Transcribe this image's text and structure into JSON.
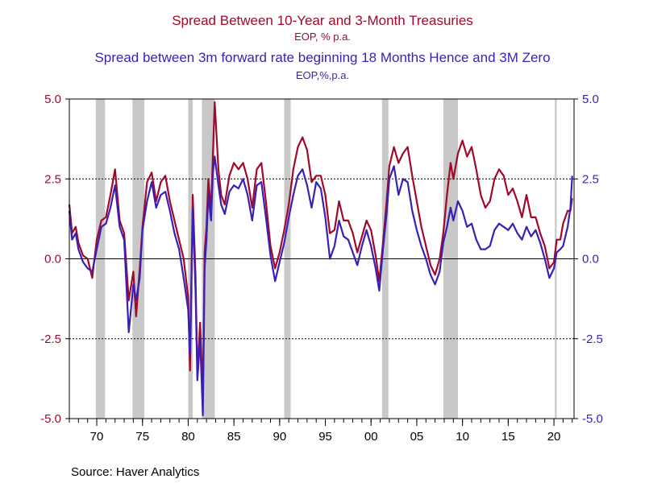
{
  "titles": {
    "series1_title": "Spread Between 10-Year and 3-Month Treasuries",
    "series1_subtitle": "EOP, % p.a.",
    "series2_title": "Spread between 3m forward rate beginning 18 Months Hence and 3M Zero",
    "series2_subtitle": "EOP,%,p.a."
  },
  "source": "Source:  Haver Analytics",
  "colors": {
    "series1": "#a0092a",
    "series2": "#3b1fb5",
    "recession": "#c8c8c8"
  },
  "chart_data": {
    "type": "line",
    "title": "Spread Between 10-Year and 3-Month Treasuries",
    "xlim": [
      1967.0,
      2022.2
    ],
    "ylim": [
      -5.0,
      5.0
    ],
    "y_ticks": [
      "5.0",
      "2.5",
      "0.0",
      "-2.5",
      "-5.0"
    ],
    "y_tick_values": [
      5.0,
      2.5,
      0.0,
      -2.5,
      -5.0
    ],
    "x_ticks": [
      "70",
      "75",
      "80",
      "85",
      "90",
      "95",
      "00",
      "05",
      "10",
      "15",
      "20"
    ],
    "x_tick_values": [
      1970,
      1975,
      1980,
      1985,
      1990,
      1995,
      2000,
      2005,
      2010,
      2015,
      2020
    ],
    "recessions": [
      [
        1969.9,
        1970.9
      ],
      [
        1973.9,
        1975.2
      ],
      [
        1980.0,
        1980.5
      ],
      [
        1981.5,
        1982.9
      ],
      [
        1990.5,
        1991.2
      ],
      [
        2001.2,
        2001.9
      ],
      [
        2007.9,
        2009.5
      ],
      [
        2020.1,
        2020.3
      ]
    ],
    "dashed_gridlines": [
      2.5,
      -2.5
    ],
    "solid_gridlines": [
      0.0
    ],
    "series": [
      {
        "name": "Spread Between 10-Year and 3-Month Treasuries",
        "color": "#a0092a",
        "points": [
          [
            1967.0,
            1.7
          ],
          [
            1967.3,
            0.8
          ],
          [
            1967.7,
            1.0
          ],
          [
            1968.0,
            0.5
          ],
          [
            1968.5,
            0.1
          ],
          [
            1969.0,
            0.0
          ],
          [
            1969.5,
            -0.6
          ],
          [
            1970.0,
            0.6
          ],
          [
            1970.5,
            1.2
          ],
          [
            1971.0,
            1.3
          ],
          [
            1971.5,
            2.0
          ],
          [
            1972.0,
            2.8
          ],
          [
            1972.5,
            1.2
          ],
          [
            1973.0,
            0.8
          ],
          [
            1973.5,
            -1.3
          ],
          [
            1974.0,
            -0.4
          ],
          [
            1974.3,
            -1.8
          ],
          [
            1974.7,
            -0.3
          ],
          [
            1975.0,
            1.0
          ],
          [
            1975.5,
            2.4
          ],
          [
            1976.0,
            2.7
          ],
          [
            1976.5,
            1.8
          ],
          [
            1977.0,
            2.4
          ],
          [
            1977.5,
            2.6
          ],
          [
            1978.0,
            1.8
          ],
          [
            1978.5,
            1.2
          ],
          [
            1979.0,
            0.6
          ],
          [
            1979.5,
            0.0
          ],
          [
            1980.0,
            -1.2
          ],
          [
            1980.2,
            -3.5
          ],
          [
            1980.5,
            2.0
          ],
          [
            1980.8,
            -0.5
          ],
          [
            1981.0,
            -3.6
          ],
          [
            1981.3,
            -2.0
          ],
          [
            1981.6,
            -4.3
          ],
          [
            1981.8,
            0.2
          ],
          [
            1982.0,
            1.0
          ],
          [
            1982.2,
            2.5
          ],
          [
            1982.5,
            1.5
          ],
          [
            1982.7,
            3.2
          ],
          [
            1982.9,
            4.9
          ],
          [
            1983.3,
            2.8
          ],
          [
            1983.6,
            2.0
          ],
          [
            1984.0,
            1.7
          ],
          [
            1984.5,
            2.6
          ],
          [
            1985.0,
            3.0
          ],
          [
            1985.5,
            2.8
          ],
          [
            1986.0,
            3.0
          ],
          [
            1986.5,
            2.5
          ],
          [
            1987.0,
            1.6
          ],
          [
            1987.5,
            2.8
          ],
          [
            1988.0,
            3.0
          ],
          [
            1988.5,
            1.8
          ],
          [
            1989.0,
            0.4
          ],
          [
            1989.5,
            -0.3
          ],
          [
            1990.0,
            0.2
          ],
          [
            1990.5,
            0.9
          ],
          [
            1991.0,
            1.7
          ],
          [
            1991.5,
            2.8
          ],
          [
            1992.0,
            3.5
          ],
          [
            1992.5,
            3.8
          ],
          [
            1993.0,
            3.4
          ],
          [
            1993.5,
            2.4
          ],
          [
            1994.0,
            2.6
          ],
          [
            1994.5,
            2.6
          ],
          [
            1995.0,
            2.0
          ],
          [
            1995.5,
            0.8
          ],
          [
            1996.0,
            0.9
          ],
          [
            1996.5,
            1.8
          ],
          [
            1997.0,
            1.2
          ],
          [
            1997.5,
            1.2
          ],
          [
            1998.0,
            0.8
          ],
          [
            1998.5,
            0.2
          ],
          [
            1999.0,
            0.7
          ],
          [
            1999.5,
            1.2
          ],
          [
            2000.0,
            0.9
          ],
          [
            2000.5,
            0.1
          ],
          [
            2000.9,
            -0.7
          ],
          [
            2001.3,
            0.5
          ],
          [
            2001.7,
            1.8
          ],
          [
            2002.0,
            2.9
          ],
          [
            2002.5,
            3.5
          ],
          [
            2003.0,
            3.0
          ],
          [
            2003.5,
            3.3
          ],
          [
            2004.0,
            3.5
          ],
          [
            2004.5,
            2.6
          ],
          [
            2005.0,
            1.8
          ],
          [
            2005.5,
            1.0
          ],
          [
            2006.0,
            0.4
          ],
          [
            2006.5,
            -0.2
          ],
          [
            2007.0,
            -0.5
          ],
          [
            2007.5,
            0.0
          ],
          [
            2007.9,
            0.8
          ],
          [
            2008.3,
            2.0
          ],
          [
            2008.7,
            3.0
          ],
          [
            2009.0,
            2.5
          ],
          [
            2009.5,
            3.3
          ],
          [
            2010.0,
            3.7
          ],
          [
            2010.5,
            3.2
          ],
          [
            2011.0,
            3.5
          ],
          [
            2011.5,
            2.8
          ],
          [
            2012.0,
            2.0
          ],
          [
            2012.5,
            1.6
          ],
          [
            2013.0,
            1.8
          ],
          [
            2013.5,
            2.5
          ],
          [
            2014.0,
            2.8
          ],
          [
            2014.5,
            2.6
          ],
          [
            2015.0,
            2.0
          ],
          [
            2015.5,
            2.2
          ],
          [
            2016.0,
            1.8
          ],
          [
            2016.5,
            1.3
          ],
          [
            2017.0,
            2.0
          ],
          [
            2017.5,
            1.3
          ],
          [
            2018.0,
            1.3
          ],
          [
            2018.5,
            0.8
          ],
          [
            2019.0,
            0.4
          ],
          [
            2019.5,
            -0.3
          ],
          [
            2020.0,
            -0.1
          ],
          [
            2020.3,
            0.6
          ],
          [
            2020.7,
            0.6
          ],
          [
            2021.0,
            1.1
          ],
          [
            2021.5,
            1.5
          ],
          [
            2021.8,
            1.5
          ],
          [
            2022.0,
            1.9
          ]
        ]
      },
      {
        "name": "Spread between 3m forward rate beginning 18 Months Hence and 3M Zero",
        "color": "#3b1fb5",
        "points": [
          [
            1967.0,
            1.5
          ],
          [
            1967.3,
            0.6
          ],
          [
            1967.7,
            0.8
          ],
          [
            1968.0,
            0.3
          ],
          [
            1968.5,
            -0.1
          ],
          [
            1969.0,
            -0.3
          ],
          [
            1969.5,
            -0.4
          ],
          [
            1970.0,
            0.3
          ],
          [
            1970.5,
            1.0
          ],
          [
            1971.0,
            1.1
          ],
          [
            1971.5,
            1.6
          ],
          [
            1972.0,
            2.3
          ],
          [
            1972.5,
            1.0
          ],
          [
            1973.0,
            0.6
          ],
          [
            1973.5,
            -2.3
          ],
          [
            1974.0,
            -0.8
          ],
          [
            1974.3,
            -1.3
          ],
          [
            1974.7,
            -0.6
          ],
          [
            1975.0,
            0.9
          ],
          [
            1975.5,
            1.8
          ],
          [
            1976.0,
            2.4
          ],
          [
            1976.5,
            1.6
          ],
          [
            1977.0,
            2.0
          ],
          [
            1977.5,
            2.1
          ],
          [
            1978.0,
            1.5
          ],
          [
            1978.5,
            0.8
          ],
          [
            1979.0,
            0.3
          ],
          [
            1979.5,
            -0.6
          ],
          [
            1980.0,
            -1.6
          ],
          [
            1980.2,
            -3.0
          ],
          [
            1980.5,
            1.6
          ],
          [
            1980.8,
            -1.0
          ],
          [
            1981.0,
            -3.8
          ],
          [
            1981.3,
            -2.5
          ],
          [
            1981.6,
            -4.9
          ],
          [
            1981.8,
            -0.3
          ],
          [
            1982.0,
            0.6
          ],
          [
            1982.2,
            2.0
          ],
          [
            1982.5,
            1.2
          ],
          [
            1982.7,
            2.7
          ],
          [
            1982.9,
            3.2
          ],
          [
            1983.3,
            2.3
          ],
          [
            1983.6,
            1.7
          ],
          [
            1984.0,
            1.4
          ],
          [
            1984.5,
            2.1
          ],
          [
            1985.0,
            2.3
          ],
          [
            1985.5,
            2.2
          ],
          [
            1986.0,
            2.5
          ],
          [
            1986.5,
            2.0
          ],
          [
            1987.0,
            1.2
          ],
          [
            1987.5,
            2.3
          ],
          [
            1988.0,
            2.4
          ],
          [
            1988.5,
            1.3
          ],
          [
            1989.0,
            0.1
          ],
          [
            1989.5,
            -0.7
          ],
          [
            1990.0,
            -0.1
          ],
          [
            1990.5,
            0.5
          ],
          [
            1991.0,
            1.3
          ],
          [
            1991.5,
            2.0
          ],
          [
            1992.0,
            2.6
          ],
          [
            1992.5,
            2.8
          ],
          [
            1993.0,
            2.3
          ],
          [
            1993.5,
            1.6
          ],
          [
            1994.0,
            2.4
          ],
          [
            1994.5,
            2.2
          ],
          [
            1995.0,
            1.3
          ],
          [
            1995.5,
            0.0
          ],
          [
            1996.0,
            0.4
          ],
          [
            1996.5,
            1.2
          ],
          [
            1997.0,
            0.7
          ],
          [
            1997.5,
            0.6
          ],
          [
            1998.0,
            0.2
          ],
          [
            1998.5,
            -0.2
          ],
          [
            1999.0,
            0.4
          ],
          [
            1999.5,
            0.9
          ],
          [
            2000.0,
            0.4
          ],
          [
            2000.5,
            -0.3
          ],
          [
            2000.9,
            -1.0
          ],
          [
            2001.3,
            0.3
          ],
          [
            2001.7,
            1.4
          ],
          [
            2002.0,
            2.5
          ],
          [
            2002.5,
            2.9
          ],
          [
            2003.0,
            2.0
          ],
          [
            2003.5,
            2.5
          ],
          [
            2004.0,
            2.4
          ],
          [
            2004.5,
            1.5
          ],
          [
            2005.0,
            0.9
          ],
          [
            2005.5,
            0.4
          ],
          [
            2006.0,
            0.0
          ],
          [
            2006.5,
            -0.5
          ],
          [
            2007.0,
            -0.8
          ],
          [
            2007.5,
            -0.4
          ],
          [
            2007.9,
            0.5
          ],
          [
            2008.3,
            1.0
          ],
          [
            2008.7,
            1.6
          ],
          [
            2009.0,
            1.2
          ],
          [
            2009.5,
            1.8
          ],
          [
            2010.0,
            1.5
          ],
          [
            2010.5,
            1.0
          ],
          [
            2011.0,
            1.1
          ],
          [
            2011.5,
            0.6
          ],
          [
            2012.0,
            0.3
          ],
          [
            2012.5,
            0.3
          ],
          [
            2013.0,
            0.4
          ],
          [
            2013.5,
            0.9
          ],
          [
            2014.0,
            1.1
          ],
          [
            2014.5,
            1.0
          ],
          [
            2015.0,
            0.9
          ],
          [
            2015.5,
            1.1
          ],
          [
            2016.0,
            0.8
          ],
          [
            2016.5,
            0.6
          ],
          [
            2017.0,
            1.0
          ],
          [
            2017.5,
            0.7
          ],
          [
            2018.0,
            0.9
          ],
          [
            2018.5,
            0.5
          ],
          [
            2019.0,
            0.0
          ],
          [
            2019.5,
            -0.6
          ],
          [
            2020.0,
            -0.3
          ],
          [
            2020.3,
            0.2
          ],
          [
            2020.7,
            0.3
          ],
          [
            2021.0,
            0.4
          ],
          [
            2021.5,
            1.0
          ],
          [
            2021.8,
            1.6
          ],
          [
            2022.0,
            2.6
          ]
        ]
      }
    ]
  }
}
